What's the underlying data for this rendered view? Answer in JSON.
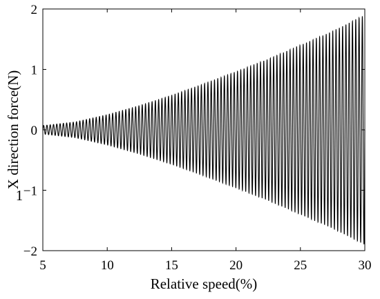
{
  "chart_data": {
    "type": "line",
    "xlabel": "Relative speed(%)",
    "ylabel_main": "X direction force(N)",
    "ylabel_subscript": "1",
    "xlim": [
      5,
      30
    ],
    "ylim": [
      -2,
      2
    ],
    "xticks": [
      5,
      10,
      15,
      20,
      25,
      30
    ],
    "yticks": [
      -2,
      -1,
      0,
      1,
      2
    ],
    "grid": false,
    "series": [
      {
        "envelope": {
          "x": [
            5,
            7.5,
            10,
            12.5,
            15,
            17.5,
            20,
            22.5,
            25,
            27.5,
            30
          ],
          "amplitude": [
            0.07,
            0.13,
            0.25,
            0.4,
            0.57,
            0.76,
            0.96,
            1.17,
            1.4,
            1.63,
            1.9
          ]
        },
        "oscillation_cycles": 98,
        "color": "#000000"
      }
    ]
  }
}
